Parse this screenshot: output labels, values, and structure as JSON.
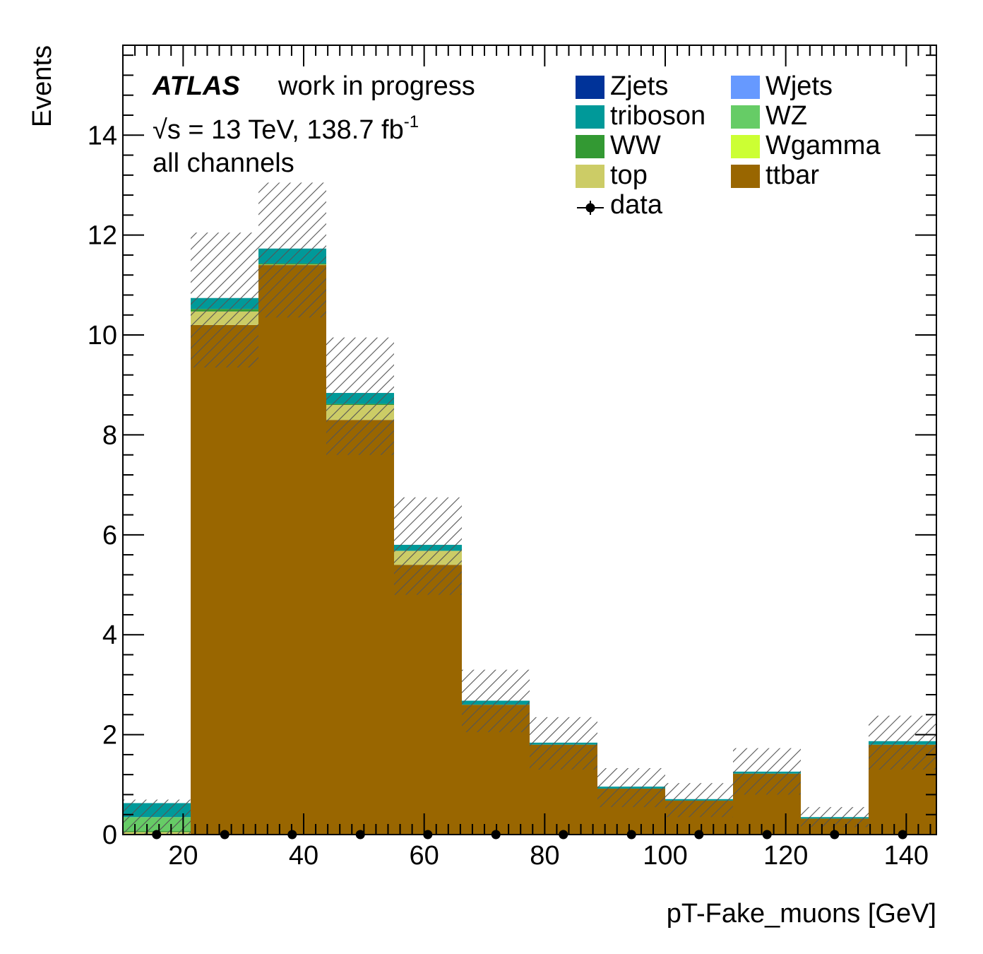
{
  "chart_data": {
    "type": "bar",
    "stacked": true,
    "title": "",
    "xlabel": "pT-Fake_muons [GeV]",
    "ylabel": "Events",
    "xlim": [
      10,
      145
    ],
    "ylim": [
      0,
      15.8
    ],
    "x_ticks": [
      20,
      40,
      60,
      80,
      100,
      120,
      140
    ],
    "y_ticks": [
      0,
      2,
      4,
      6,
      8,
      10,
      12,
      14
    ],
    "bin_edges": [
      10,
      21.25,
      32.5,
      43.75,
      55,
      66.25,
      77.5,
      88.75,
      100,
      111.25,
      122.5,
      133.75,
      145
    ],
    "series": [
      {
        "name": "ttbar",
        "color": "#996600",
        "values": [
          0.0,
          10.2,
          11.4,
          8.3,
          5.4,
          2.6,
          1.8,
          0.92,
          0.68,
          1.22,
          0.32,
          1.8
        ]
      },
      {
        "name": "top",
        "color": "#cccc66",
        "values": [
          0.05,
          0.27,
          0.01,
          0.3,
          0.28,
          0.0,
          0.0,
          0.0,
          0.0,
          0.0,
          0.0,
          0.0
        ]
      },
      {
        "name": "Wgamma",
        "color": "#ccff33",
        "values": [
          0.0,
          0.0,
          0.0,
          0.0,
          0.0,
          0.0,
          0.0,
          0.0,
          0.0,
          0.0,
          0.0,
          0.0
        ]
      },
      {
        "name": "WW",
        "color": "#339933",
        "values": [
          0.02,
          0.05,
          0.02,
          0.02,
          0.0,
          0.0,
          0.0,
          0.0,
          0.0,
          0.0,
          0.0,
          0.0
        ]
      },
      {
        "name": "WZ",
        "color": "#66cc66",
        "values": [
          0.28,
          0.0,
          0.0,
          0.0,
          0.0,
          0.0,
          0.0,
          0.0,
          0.0,
          0.0,
          0.0,
          0.0
        ]
      },
      {
        "name": "triboson",
        "color": "#009999",
        "values": [
          0.28,
          0.22,
          0.3,
          0.22,
          0.12,
          0.08,
          0.04,
          0.04,
          0.03,
          0.04,
          0.03,
          0.07
        ]
      },
      {
        "name": "Wjets",
        "color": "#6699ff",
        "values": [
          0.0,
          0.0,
          0.0,
          0.0,
          0.0,
          0.0,
          0.0,
          0.0,
          0.0,
          0.0,
          0.0,
          0.0
        ]
      },
      {
        "name": "Zjets",
        "color": "#003399",
        "values": [
          0.0,
          0.0,
          0.0,
          0.0,
          0.0,
          0.0,
          0.0,
          0.0,
          0.0,
          0.0,
          0.0,
          0.0
        ]
      }
    ],
    "uncertainty": {
      "low": [
        0.0,
        9.35,
        10.35,
        7.6,
        4.8,
        2.05,
        1.3,
        0.55,
        0.35,
        0.8,
        0.15,
        1.3
      ],
      "high": [
        0.7,
        12.05,
        13.05,
        9.95,
        6.75,
        3.3,
        2.35,
        1.33,
        1.03,
        1.73,
        0.55,
        2.38
      ]
    },
    "data": {
      "name": "data",
      "x": [
        15.6,
        26.9,
        38.1,
        49.4,
        60.6,
        71.9,
        83.1,
        94.4,
        105.6,
        116.9,
        128.1,
        139.4
      ],
      "y": [
        0,
        0,
        0,
        0,
        0,
        0,
        0,
        0,
        0,
        0,
        0,
        0
      ]
    },
    "legend": {
      "position": "top-right",
      "entries": [
        {
          "label": "Zjets",
          "color": "#003399"
        },
        {
          "label": "Wjets",
          "color": "#6699ff"
        },
        {
          "label": "triboson",
          "color": "#009999"
        },
        {
          "label": "WZ",
          "color": "#66cc66"
        },
        {
          "label": "WW",
          "color": "#339933"
        },
        {
          "label": "Wgamma",
          "color": "#ccff33"
        },
        {
          "label": "top",
          "color": "#cccc66"
        },
        {
          "label": "ttbar",
          "color": "#996600"
        },
        {
          "label": "data",
          "color": "#000000",
          "marker": "point"
        }
      ]
    },
    "annotations": {
      "atlas": "ATLAS",
      "status": "work in progress",
      "energy_prefix": "√s = 13 TeV, 138.7 fb",
      "energy_sup": "-1",
      "channel": "all channels"
    }
  }
}
